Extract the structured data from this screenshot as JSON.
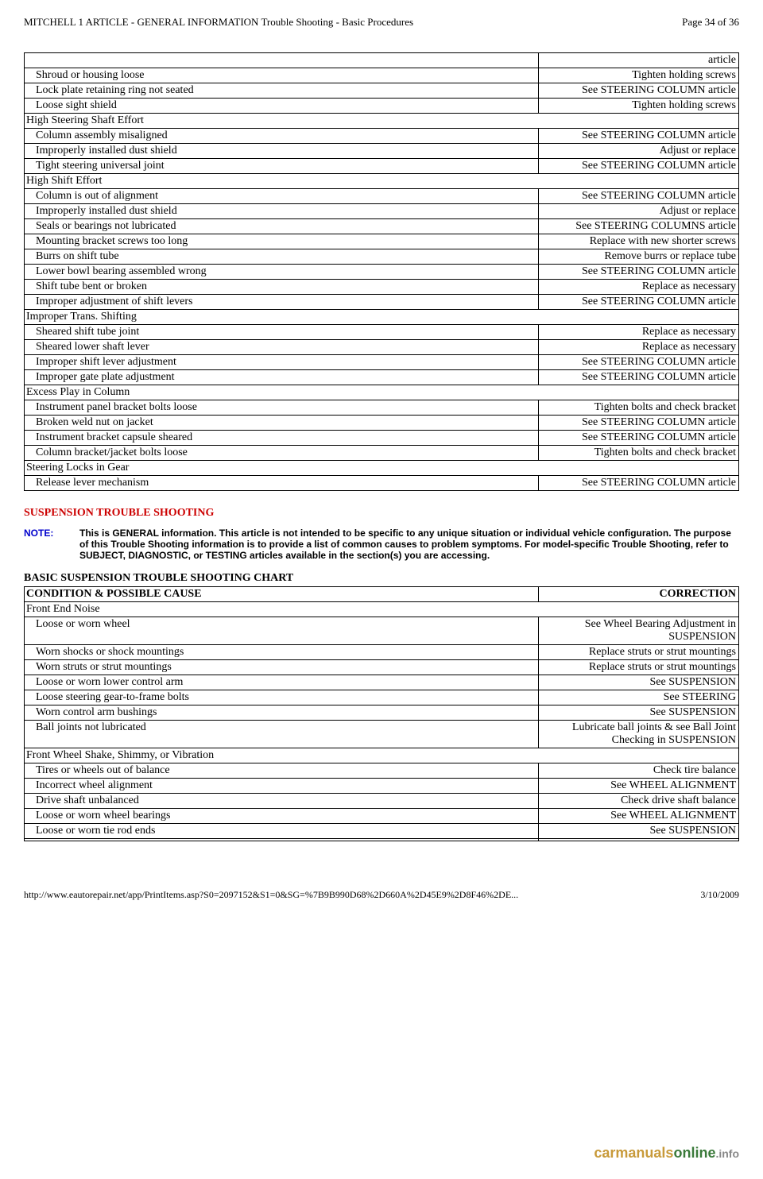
{
  "header": {
    "title": "MITCHELL 1 ARTICLE - GENERAL INFORMATION Trouble Shooting - Basic Procedures",
    "page": "Page 34 of 36"
  },
  "table1_rows": [
    {
      "type": "row",
      "cause": "",
      "corr": "article"
    },
    {
      "type": "row",
      "cause": "Shroud or housing loose",
      "corr": "Tighten holding screws"
    },
    {
      "type": "row",
      "cause": "Lock plate retaining ring not seated",
      "corr": "See STEERING COLUMN article"
    },
    {
      "type": "row",
      "cause": "Loose sight shield",
      "corr": "Tighten holding screws"
    },
    {
      "type": "section",
      "label": "High Steering Shaft Effort"
    },
    {
      "type": "row",
      "cause": "Column assembly misaligned",
      "corr": "See STEERING COLUMN article"
    },
    {
      "type": "row",
      "cause": "Improperly installed dust shield",
      "corr": "Adjust or replace"
    },
    {
      "type": "row",
      "cause": "Tight steering universal joint",
      "corr": "See STEERING COLUMN article"
    },
    {
      "type": "section",
      "label": "High Shift Effort"
    },
    {
      "type": "row",
      "cause": "Column is out of alignment",
      "corr": "See STEERING COLUMN article"
    },
    {
      "type": "row",
      "cause": "Improperly installed dust shield",
      "corr": "Adjust or replace"
    },
    {
      "type": "row",
      "cause": "Seals or bearings not lubricated",
      "corr": "See STEERING COLUMNS article"
    },
    {
      "type": "row",
      "cause": "Mounting bracket screws too long",
      "corr": "Replace with new shorter screws"
    },
    {
      "type": "row",
      "cause": "Burrs on shift tube",
      "corr": "Remove burrs or replace tube"
    },
    {
      "type": "row",
      "cause": "Lower bowl bearing assembled wrong",
      "corr": "See STEERING COLUMN article"
    },
    {
      "type": "row",
      "cause": "Shift tube bent or broken",
      "corr": "Replace as necessary"
    },
    {
      "type": "row",
      "cause": "Improper adjustment of shift levers",
      "corr": "See STEERING COLUMN article"
    },
    {
      "type": "section",
      "label": "Improper Trans. Shifting"
    },
    {
      "type": "row",
      "cause": "Sheared shift tube joint",
      "corr": "Replace as necessary"
    },
    {
      "type": "row",
      "cause": "Sheared lower shaft lever",
      "corr": "Replace as necessary"
    },
    {
      "type": "row",
      "cause": "Improper shift lever adjustment",
      "corr": "See STEERING COLUMN article"
    },
    {
      "type": "row",
      "cause": "Improper gate plate adjustment",
      "corr": "See STEERING COLUMN article"
    },
    {
      "type": "section",
      "label": "Excess Play in Column"
    },
    {
      "type": "row",
      "cause": "Instrument panel bracket bolts loose",
      "corr": "Tighten bolts and check bracket"
    },
    {
      "type": "row",
      "cause": "Broken weld nut on jacket",
      "corr": "See STEERING COLUMN article"
    },
    {
      "type": "row",
      "cause": "Instrument bracket capsule sheared",
      "corr": "See STEERING COLUMN article"
    },
    {
      "type": "row",
      "cause": "Column bracket/jacket bolts loose",
      "corr": "Tighten bolts and check bracket"
    },
    {
      "type": "section",
      "label": "Steering Locks in Gear"
    },
    {
      "type": "row",
      "cause": "Release lever mechanism",
      "corr": "See STEERING COLUMN article"
    }
  ],
  "section_title": "SUSPENSION TROUBLE SHOOTING",
  "note": {
    "label": "NOTE:",
    "text": "This is GENERAL information. This article is not intended to be specific to any unique situation or individual vehicle configuration. The purpose of this Trouble Shooting information is to provide a list of common causes to problem symptoms. For model-specific Trouble Shooting, refer to SUBJECT, DIAGNOSTIC, or TESTING articles available in the section(s) you are accessing."
  },
  "chart2_title": "BASIC SUSPENSION TROUBLE SHOOTING CHART",
  "table2_headers": {
    "cond": "CONDITION & POSSIBLE CAUSE",
    "corr": "CORRECTION"
  },
  "table2_rows": [
    {
      "type": "section",
      "label": "Front End Noise"
    },
    {
      "type": "row",
      "cause": "Loose or worn wheel",
      "corr": "See Wheel Bearing Adjustment in SUSPENSION"
    },
    {
      "type": "row",
      "cause": "Worn shocks or shock mountings",
      "corr": "Replace struts or strut mountings"
    },
    {
      "type": "row",
      "cause": "Worn struts or strut mountings",
      "corr": "Replace struts or strut mountings"
    },
    {
      "type": "row",
      "cause": "Loose or worn lower control arm",
      "corr": "See SUSPENSION"
    },
    {
      "type": "row",
      "cause": "Loose steering gear-to-frame bolts",
      "corr": "See STEERING"
    },
    {
      "type": "row",
      "cause": "Worn control arm bushings",
      "corr": "See SUSPENSION"
    },
    {
      "type": "row",
      "cause": "Ball joints not lubricated",
      "corr": "Lubricate ball joints & see Ball Joint Checking in SUSPENSION"
    },
    {
      "type": "section",
      "label": "Front Wheel Shake, Shimmy, or Vibration"
    },
    {
      "type": "row",
      "cause": "Tires or wheels out of balance",
      "corr": "Check tire balance"
    },
    {
      "type": "row",
      "cause": "Incorrect wheel alignment",
      "corr": "See WHEEL ALIGNMENT"
    },
    {
      "type": "row",
      "cause": "Drive shaft unbalanced",
      "corr": "Check drive shaft balance"
    },
    {
      "type": "row",
      "cause": "Loose or worn wheel bearings",
      "corr": "See WHEEL ALIGNMENT"
    },
    {
      "type": "row",
      "cause": "Loose or worn tie rod ends",
      "corr": "See SUSPENSION"
    },
    {
      "type": "row",
      "cause": "",
      "corr": ""
    }
  ],
  "footer": {
    "url": "http://www.eautorepair.net/app/PrintItems.asp?S0=2097152&S1=0&SG=%7B9B990D68%2D660A%2D45E9%2D8F46%2DE...",
    "date": "3/10/2009"
  },
  "watermark": {
    "a": "carmanuals",
    "b": "online",
    "c": ".info"
  }
}
